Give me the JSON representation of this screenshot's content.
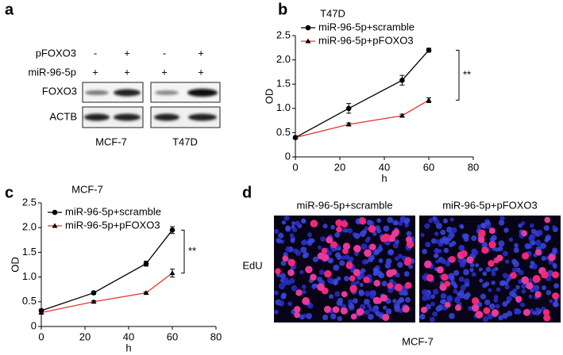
{
  "chart_data": [
    {
      "type": "line",
      "label": "b",
      "title": "T47D",
      "xlabel": "h",
      "ylabel": "OD",
      "x": [
        0,
        24,
        48,
        60
      ],
      "series": [
        {
          "name": "miR-96-5p+scramble",
          "color": "#000000",
          "marker": "circle",
          "values": [
            0.4,
            1.0,
            1.58,
            2.2
          ],
          "errors": [
            0.02,
            0.1,
            0.1,
            0.04
          ]
        },
        {
          "name": "miR-96-5p+pFOXO3",
          "color": "#e8322b",
          "marker": "triangle",
          "values": [
            0.4,
            0.67,
            0.85,
            1.17
          ],
          "errors": [
            0.02,
            0.03,
            0.03,
            0.05
          ]
        }
      ],
      "xlim": [
        0,
        80
      ],
      "xticks": [
        0,
        20,
        40,
        60,
        80
      ],
      "ylim": [
        0,
        2.5
      ],
      "yticks": [
        0,
        0.5,
        {
          "value": 1,
          "label": "1.0"
        },
        1.5,
        {
          "value": 2,
          "label": "2.0"
        },
        2.5
      ],
      "annotation": "**",
      "legend": "upper left"
    },
    {
      "type": "line",
      "label": "c",
      "title": "MCF-7",
      "xlabel": "h",
      "ylabel": "OD",
      "x": [
        0,
        24,
        48,
        60
      ],
      "series": [
        {
          "name": "miR-96-5p+scramble",
          "color": "#000000",
          "marker": "circle",
          "values": [
            0.32,
            0.68,
            1.27,
            1.95
          ],
          "errors": [
            0.03,
            0.03,
            0.05,
            0.07
          ]
        },
        {
          "name": "miR-96-5p+pFOXO3",
          "color": "#e8322b",
          "marker": "triangle",
          "values": [
            0.28,
            0.5,
            0.68,
            1.08
          ],
          "errors": [
            0.02,
            0.02,
            0.02,
            0.08
          ]
        }
      ],
      "xlim": [
        0,
        80
      ],
      "xticks": [
        0,
        20,
        40,
        60,
        80
      ],
      "ylim": [
        0,
        2.5
      ],
      "yticks": [
        0,
        0.5,
        {
          "value": 1,
          "label": "1.0"
        },
        1.5,
        {
          "value": 2,
          "label": "2.0"
        },
        2.5
      ],
      "annotation": "**",
      "legend": "upper left"
    }
  ],
  "blot": {
    "label": "a",
    "rows": [
      "pFOXO3",
      "miR-96-5p"
    ],
    "signs": [
      [
        "-",
        "+",
        "-",
        "+"
      ],
      [
        "+",
        "+",
        "+",
        "+"
      ]
    ],
    "bands": [
      "FOXO3",
      "ACTB"
    ],
    "cell_lines": [
      "MCF-7",
      "T47D"
    ]
  },
  "images": {
    "label": "d",
    "titles": [
      "miR-96-5p+scramble",
      "miR-96-5p+pFOXO3"
    ],
    "row_label": "EdU",
    "caption": "MCF-7"
  }
}
